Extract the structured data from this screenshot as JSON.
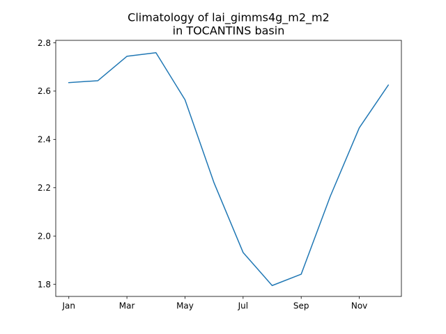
{
  "chart_data": {
    "type": "line",
    "title_line1": "Climatology of lai_gimms4g_m2_m2",
    "title_line2": "in TOCANTINS basin",
    "xlabel": "",
    "ylabel": "",
    "x": [
      1,
      2,
      3,
      4,
      5,
      6,
      7,
      8,
      9,
      10,
      11,
      12
    ],
    "x_tick_positions": [
      1,
      3,
      5,
      7,
      9,
      11
    ],
    "x_tick_labels": [
      "Jan",
      "Mar",
      "May",
      "Jul",
      "Sep",
      "Nov"
    ],
    "xlim": [
      0.55,
      12.45
    ],
    "ylim": [
      1.75,
      2.81
    ],
    "y_ticks": [
      1.8,
      2.0,
      2.2,
      2.4,
      2.6,
      2.8
    ],
    "y_tick_labels": [
      "1.8",
      "2.0",
      "2.2",
      "2.4",
      "2.6",
      "2.8"
    ],
    "series": [
      {
        "values": [
          2.635,
          2.643,
          2.744,
          2.759,
          2.564,
          2.22,
          1.932,
          1.795,
          1.842,
          2.164,
          2.448,
          2.625
        ],
        "color": "#1f77b4"
      }
    ],
    "grid": false,
    "legend": "none"
  }
}
